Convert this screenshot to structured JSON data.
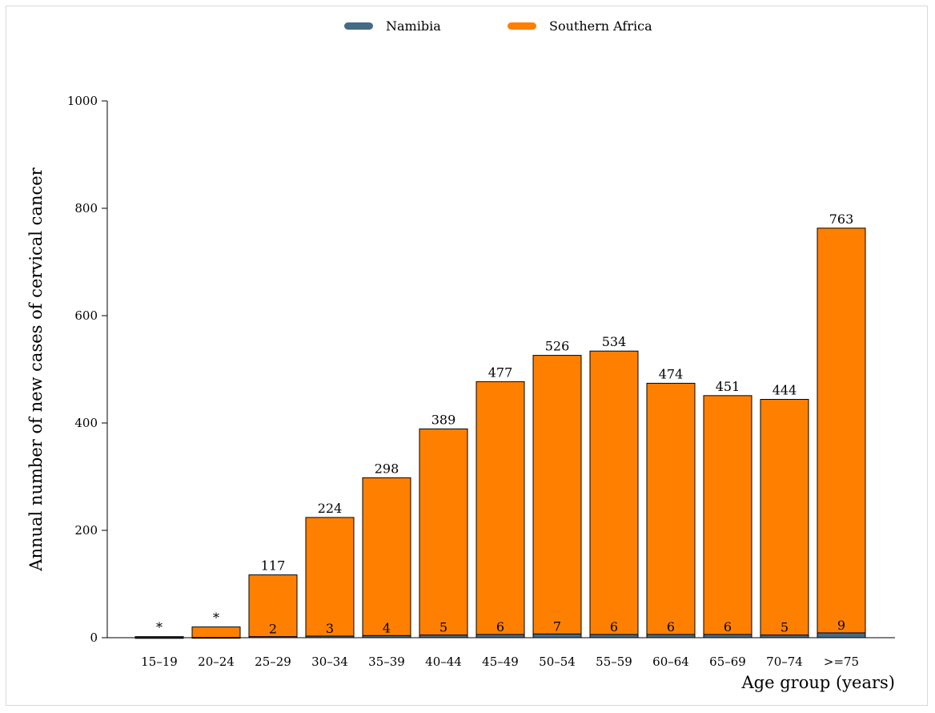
{
  "chart_data": {
    "type": "bar",
    "stacked": false,
    "overlay": true,
    "categories": [
      "15–19",
      "20–24",
      "25–29",
      "30–34",
      "35–39",
      "40–44",
      "45–49",
      "50–54",
      "55–59",
      "60–64",
      "65–69",
      "70–74",
      ">=75"
    ],
    "series": [
      {
        "name": "Namibia",
        "color": "#456b85",
        "values": [
          0.3,
          0.5,
          2,
          3,
          4,
          5,
          6,
          7,
          6,
          6,
          6,
          5,
          9
        ],
        "labels": [
          "",
          "",
          "2",
          "3",
          "4",
          "5",
          "6",
          "7",
          "6",
          "6",
          "6",
          "5",
          "9"
        ]
      },
      {
        "name": "Southern Africa",
        "color": "#ff8000",
        "values": [
          2,
          20,
          117,
          224,
          298,
          389,
          477,
          526,
          534,
          474,
          451,
          444,
          763
        ],
        "labels": [
          "*",
          "*",
          "117",
          "224",
          "298",
          "389",
          "477",
          "526",
          "534",
          "474",
          "451",
          "444",
          "763"
        ]
      }
    ],
    "xlabel": "Age group (years)",
    "ylabel": "Annual number of new cases of cervical cancer",
    "ylim": [
      0,
      1000
    ],
    "yticks": [
      0,
      200,
      400,
      600,
      800,
      1000
    ],
    "grid": false,
    "legend": "top-center"
  }
}
